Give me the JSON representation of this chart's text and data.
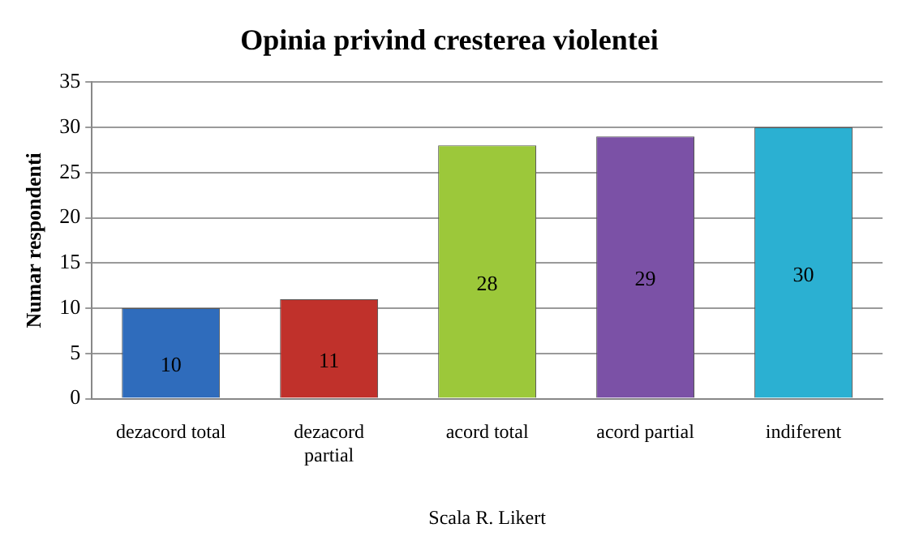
{
  "chart_data": {
    "type": "bar",
    "title": "Opinia privind cresterea violentei",
    "xlabel": "Scala R. Likert",
    "ylabel": "Numar respondenti",
    "categories": [
      "dezacord total",
      "dezacord partial",
      "acord total",
      "acord partial",
      "indiferent"
    ],
    "values": [
      10,
      11,
      28,
      29,
      30
    ],
    "colors": [
      "#2f6cbc",
      "#c0312b",
      "#9cc83a",
      "#7b51a6",
      "#2bb0d2"
    ],
    "ylim": [
      0,
      35
    ],
    "yticks": [
      0,
      5,
      10,
      15,
      20,
      25,
      30,
      35
    ],
    "grid": "y",
    "data_labels": true,
    "legend": false
  }
}
